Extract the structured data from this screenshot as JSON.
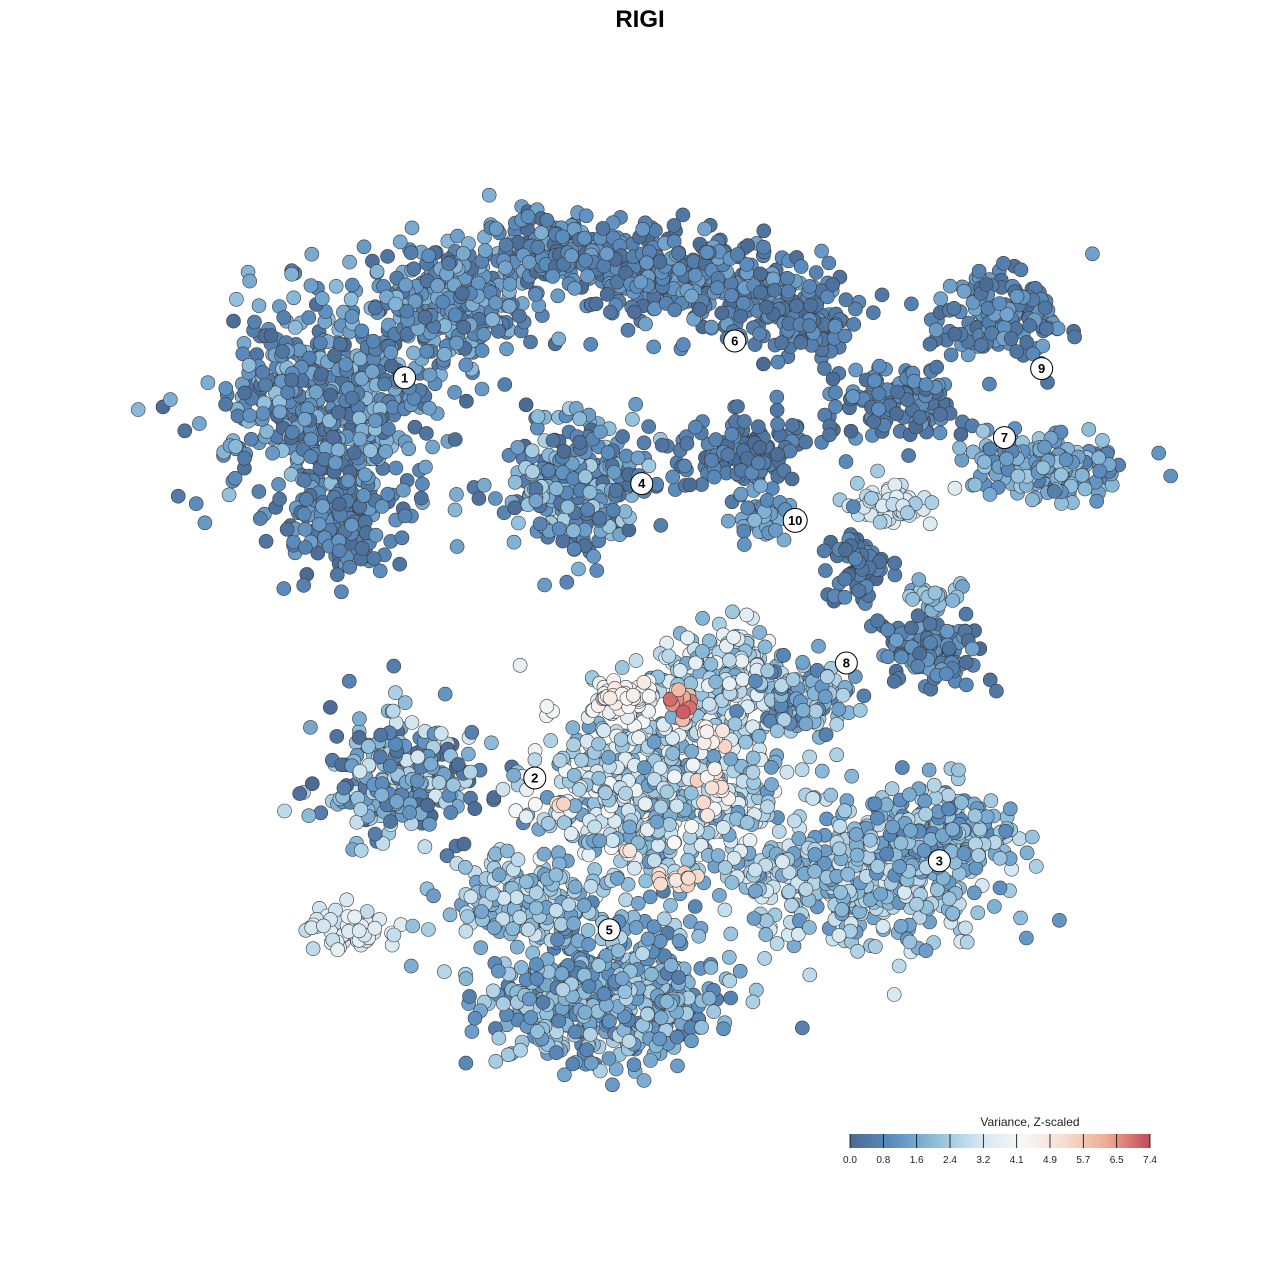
{
  "chart_data": {
    "type": "scatter",
    "title": "RIGI",
    "description_kind": "UMAP-style embedding of cells colored by variance",
    "clusters": [
      {
        "label": "1",
        "center": [
          -5.6,
          3.7
        ]
      },
      {
        "label": "2",
        "center": [
          -2.8,
          -5.0
        ]
      },
      {
        "label": "3",
        "center": [
          5.9,
          -6.8
        ]
      },
      {
        "label": "4",
        "center": [
          -0.5,
          1.4
        ]
      },
      {
        "label": "5",
        "center": [
          -1.2,
          -8.3
        ]
      },
      {
        "label": "6",
        "center": [
          1.5,
          4.5
        ]
      },
      {
        "label": "7",
        "center": [
          7.3,
          2.4
        ]
      },
      {
        "label": "8",
        "center": [
          3.9,
          -2.5
        ]
      },
      {
        "label": "9",
        "center": [
          8.1,
          3.9
        ]
      },
      {
        "label": "10",
        "center": [
          2.8,
          0.6
        ]
      }
    ],
    "xlim": [
      -10,
      10
    ],
    "ylim": [
      -12,
      8
    ],
    "colorbar": {
      "title": "Variance, Z-scaled",
      "ticks": [
        "0.0",
        "0.8",
        "1.6",
        "2.4",
        "3.2",
        "4.1",
        "4.9",
        "5.7",
        "6.5",
        "7.4"
      ],
      "min": 0.0,
      "max": 7.4,
      "colors": [
        "#4a6a93",
        "#5b8dbf",
        "#8fbedb",
        "#d2e6f1",
        "#f7f7f7",
        "#f7ddd0",
        "#eeaa92",
        "#c4485a"
      ],
      "placement": "bottom-right"
    }
  }
}
